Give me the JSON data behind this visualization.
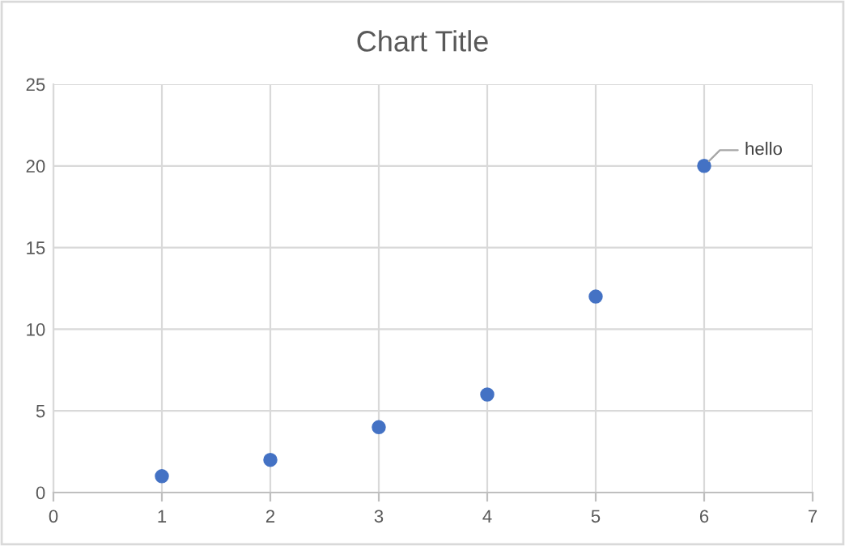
{
  "chart_data": {
    "type": "scatter",
    "title": "Chart Title",
    "x": [
      1,
      2,
      3,
      4,
      5,
      6
    ],
    "series": [
      {
        "color": "#4472c4",
        "values": [
          1,
          2,
          4,
          6,
          12,
          20
        ]
      }
    ],
    "xlim": [
      0,
      7
    ],
    "xticks": [
      0,
      1,
      2,
      3,
      4,
      5,
      6,
      7
    ],
    "ylim": [
      0,
      25
    ],
    "yticks": [
      0,
      5,
      10,
      15,
      20,
      25
    ],
    "grid": true,
    "marker": "circle",
    "annotations": [
      {
        "text": "hello",
        "x": 6,
        "y": 20
      }
    ]
  }
}
